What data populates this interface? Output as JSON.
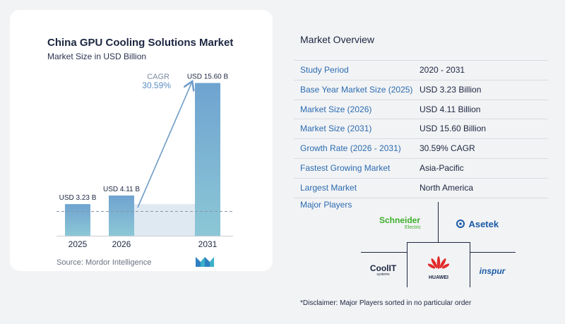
{
  "chart": {
    "title": "China GPU Cooling Solutions Market",
    "subtitle": "Market Size in USD Billion",
    "source": "Source:  Mordor Intelligence",
    "cagr_label": "CAGR",
    "cagr_value": "30.59%"
  },
  "chart_data": {
    "type": "bar",
    "title": "China GPU Cooling Solutions Market",
    "subtitle": "Market Size in USD Billion",
    "categories": [
      "2025",
      "2026",
      "2031"
    ],
    "values": [
      3.23,
      4.11,
      15.6
    ],
    "data_labels": [
      "USD 3.23 B",
      "USD 4.11 B",
      "USD 15.60 B"
    ],
    "annotation": {
      "text": "CAGR 30.59%",
      "from": "2026",
      "to": "2031"
    },
    "ylim": [
      0,
      16
    ],
    "grid": false,
    "colors": {
      "bar_top": "#6fa3d0",
      "bar_bottom": "#8cc7d6",
      "band": "#dfe9f2",
      "arrow": "#6f9cc8",
      "cagr": "#5b8fc4"
    }
  },
  "overview": {
    "title": "Market Overview",
    "rows": [
      {
        "label": "Study Period",
        "value": "2020 - 2031"
      },
      {
        "label": "Base Year Market Size (2025)",
        "value": "USD 3.23 Billion"
      },
      {
        "label": "Market Size (2026)",
        "value": "USD 4.11 Billion"
      },
      {
        "label": "Market Size (2031)",
        "value": "USD 15.60 Billion"
      },
      {
        "label": "Growth Rate (2026 - 2031)",
        "value": "30.59% CAGR"
      },
      {
        "label": "Fastest Growing Market",
        "value": "Asia-Pacific"
      },
      {
        "label": "Largest Market",
        "value": "North America"
      }
    ]
  },
  "players": {
    "title": "Major Players",
    "schneider": "Schneider",
    "schneider_sub": "Electric",
    "asetek": "Asetek",
    "coolit": "CoolIT",
    "coolit_sub": "systems",
    "huawei": "HUAWEI",
    "inspur": "inspur"
  },
  "disclaimer": "*Disclaimer: Major Players sorted in no particular order"
}
